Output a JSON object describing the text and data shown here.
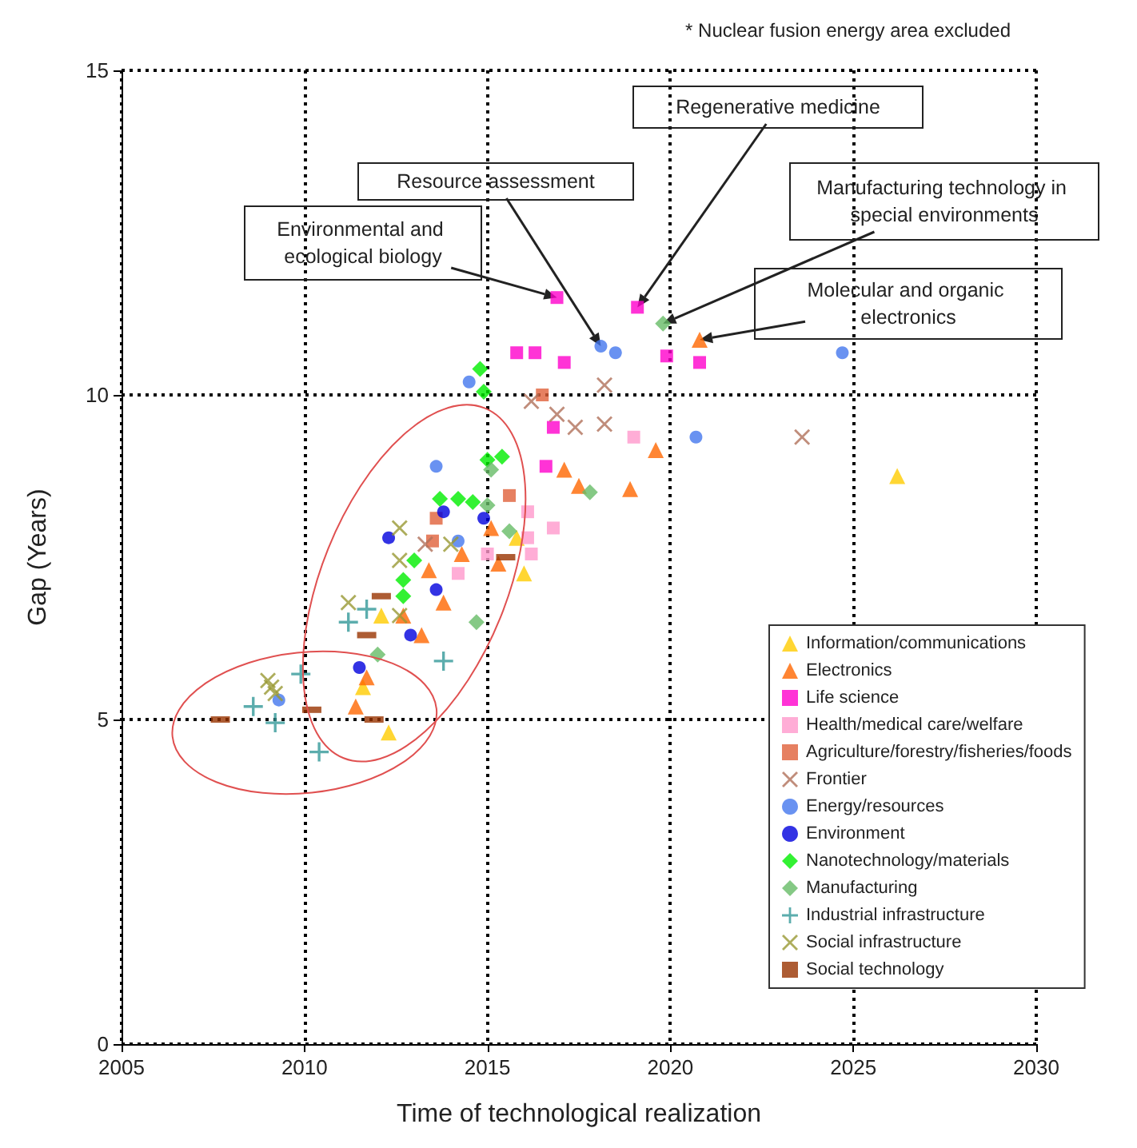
{
  "chart_data": {
    "type": "scatter",
    "xlabel": "Time of technological realization",
    "ylabel": "Gap (Years)",
    "xlim": [
      2005,
      2030
    ],
    "xticks": [
      2005,
      2010,
      2015,
      2020,
      2025,
      2030
    ],
    "ylim": [
      0,
      15
    ],
    "yticks": [
      0,
      5,
      10,
      15
    ],
    "grid": true,
    "legend": "bottom right",
    "annotations": [
      "* Nuclear fusion energy area excluded",
      {
        "text": "Environmental and ecological biology",
        "x": 2016.9,
        "y": 11.5
      },
      {
        "text": "Resource assessment",
        "x": 2018.1,
        "y": 10.75
      },
      {
        "text": "Regenerative medicine",
        "x": 2019.1,
        "y": 11.35
      },
      {
        "text": "Manufacturing technology in special environments",
        "x": 2019.8,
        "y": 11.1
      },
      {
        "text": "Molecular and organic electronics",
        "x": 2020.8,
        "y": 10.85
      }
    ],
    "series": [
      {
        "name": "Information/communications",
        "color": "#ffcc00",
        "marker": "triangle",
        "x": [
          2011.6,
          2012.3,
          2012.1,
          2015.8,
          2016.0,
          2026.2
        ],
        "values": [
          5.5,
          4.8,
          6.6,
          7.8,
          7.25,
          8.75
        ]
      },
      {
        "name": "Electronics",
        "color": "#ff6600",
        "marker": "triangle",
        "x": [
          2011.4,
          2011.7,
          2015.1,
          2014.3,
          2013.4,
          2013.8,
          2015.3,
          2013.2,
          2012.7,
          2019.6,
          2017.1,
          2017.5,
          2018.9,
          2020.8
        ],
        "values": [
          5.2,
          5.65,
          7.95,
          7.55,
          7.3,
          6.8,
          7.4,
          6.3,
          6.6,
          9.15,
          8.85,
          8.6,
          8.55,
          10.85
        ]
      },
      {
        "name": "Life science",
        "color": "#ff00cc",
        "marker": "square",
        "x": [
          2016.9,
          2019.1,
          2015.8,
          2016.3,
          2017.1,
          2019.9,
          2020.8,
          2016.8,
          2016.6
        ],
        "values": [
          11.5,
          11.35,
          10.65,
          10.65,
          10.5,
          10.6,
          10.5,
          9.5,
          8.9
        ]
      },
      {
        "name": "Health/medical care/welfare",
        "color": "#ff99cc",
        "marker": "square",
        "x": [
          2016.1,
          2016.1,
          2016.2,
          2016.8,
          2014.2,
          2015.0,
          2019.0
        ],
        "values": [
          8.2,
          7.8,
          7.55,
          7.95,
          7.25,
          7.55,
          9.35
        ]
      },
      {
        "name": "Agriculture/forestry/fisheries/foods",
        "color": "#e0603a",
        "marker": "square",
        "x": [
          2015.6,
          2013.6,
          2013.5,
          2016.5
        ],
        "values": [
          8.45,
          8.1,
          7.75,
          10.0
        ]
      },
      {
        "name": "Frontier",
        "color": "#b0705a",
        "marker": "cross",
        "x": [
          2016.2,
          2018.2,
          2016.9,
          2017.4,
          2018.2,
          2023.6,
          2013.3
        ],
        "values": [
          9.9,
          10.15,
          9.7,
          9.5,
          9.55,
          9.35,
          7.7
        ]
      },
      {
        "name": "Energy/resources",
        "color": "#4477ee",
        "marker": "circle",
        "x": [
          2009.3,
          2013.6,
          2014.2,
          2018.1,
          2018.5,
          2014.5,
          2020.7,
          2024.7
        ],
        "values": [
          5.3,
          8.9,
          7.75,
          10.75,
          10.65,
          10.2,
          9.35,
          10.65
        ]
      },
      {
        "name": "Environment",
        "color": "#0000dd",
        "marker": "circle",
        "x": [
          2011.5,
          2013.8,
          2014.9,
          2012.3,
          2013.6,
          2012.9
        ],
        "values": [
          5.8,
          8.2,
          8.1,
          7.8,
          7.0,
          6.3
        ]
      },
      {
        "name": "Nanotechnology/materials",
        "color": "#00ee00",
        "marker": "diamond",
        "x": [
          2015.0,
          2015.4,
          2013.7,
          2014.2,
          2014.6,
          2013.0,
          2012.7,
          2012.7,
          2014.8,
          2014.9
        ],
        "values": [
          9.0,
          9.05,
          8.4,
          8.4,
          8.35,
          7.45,
          7.15,
          6.9,
          10.4,
          10.05
        ]
      },
      {
        "name": "Manufacturing",
        "color": "#66bb66",
        "marker": "diamond",
        "x": [
          2012.0,
          2015.1,
          2015.0,
          2015.6,
          2014.7,
          2019.8,
          2017.8
        ],
        "values": [
          6.0,
          8.85,
          8.3,
          7.9,
          6.5,
          11.1,
          8.5
        ]
      },
      {
        "name": "Industrial infrastructure",
        "color": "#339999",
        "marker": "plus",
        "x": [
          2008.6,
          2009.2,
          2009.9,
          2010.4,
          2013.8,
          2011.2,
          2011.7
        ],
        "values": [
          5.2,
          4.95,
          5.7,
          4.5,
          5.9,
          6.5,
          6.7
        ]
      },
      {
        "name": "Social infrastructure",
        "color": "#999933",
        "marker": "cross",
        "x": [
          2009.0,
          2009.1,
          2009.2,
          2012.6,
          2014.0,
          2012.6,
          2011.2,
          2012.6
        ],
        "values": [
          5.6,
          5.5,
          5.4,
          7.95,
          7.7,
          7.45,
          6.8,
          6.6
        ]
      },
      {
        "name": "Social technology",
        "color": "#993300",
        "marker": "square",
        "x": [
          2007.7,
          2010.2,
          2011.9,
          2012.1,
          2015.5,
          2011.7
        ],
        "values": [
          5.0,
          5.15,
          5.0,
          6.9,
          7.5,
          6.3
        ]
      }
    ]
  }
}
